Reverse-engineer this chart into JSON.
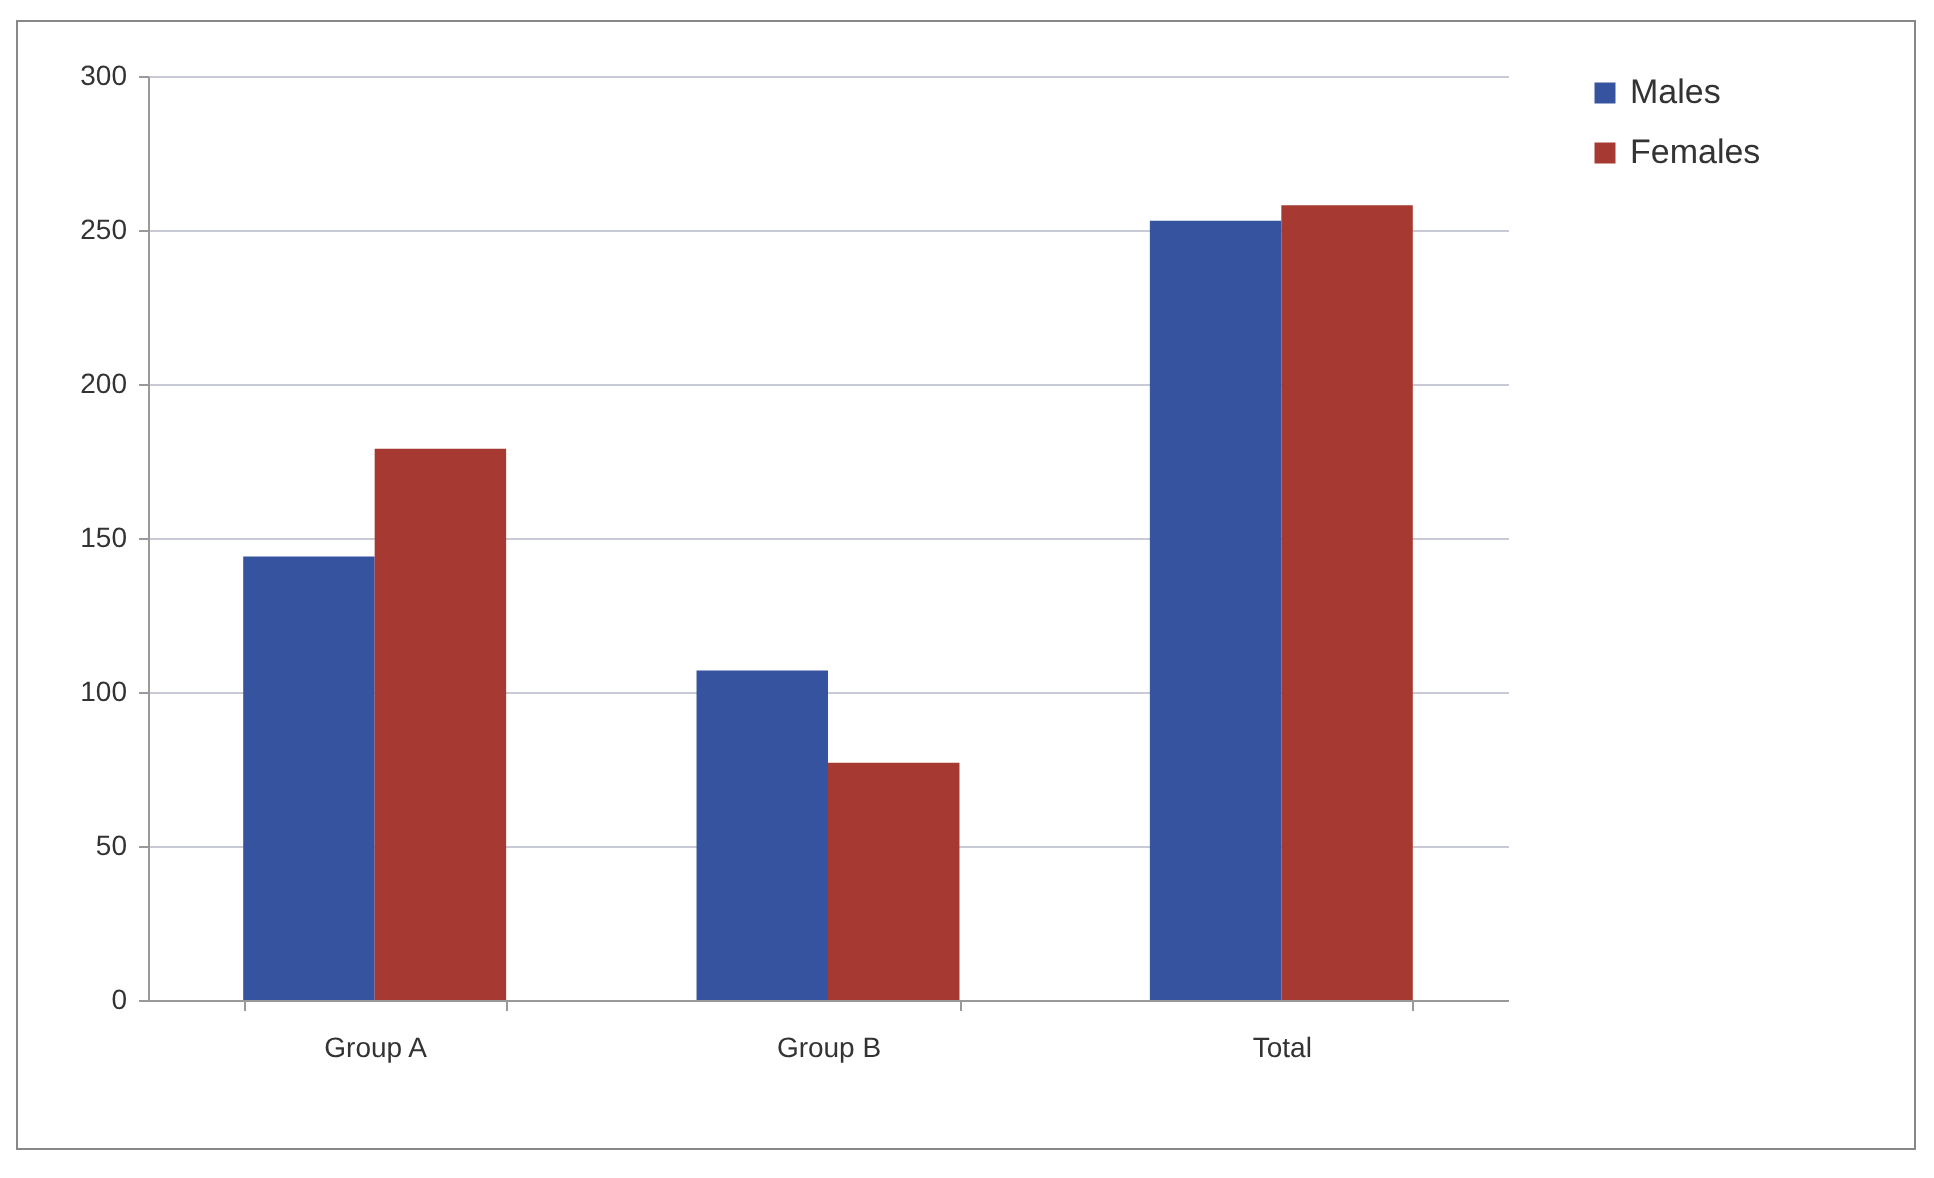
{
  "chart_data": {
    "type": "bar",
    "categories": [
      "Group A",
      "Group B",
      "Total"
    ],
    "series": [
      {
        "name": "Males",
        "color": "#36539f",
        "values": [
          144,
          107,
          253
        ]
      },
      {
        "name": "Females",
        "color": "#a63a32",
        "values": [
          179,
          77,
          258
        ]
      }
    ],
    "ylim": [
      0,
      300
    ],
    "yticks": [
      0,
      50,
      100,
      150,
      200,
      250,
      300
    ],
    "grid": "y",
    "legend": "right"
  }
}
